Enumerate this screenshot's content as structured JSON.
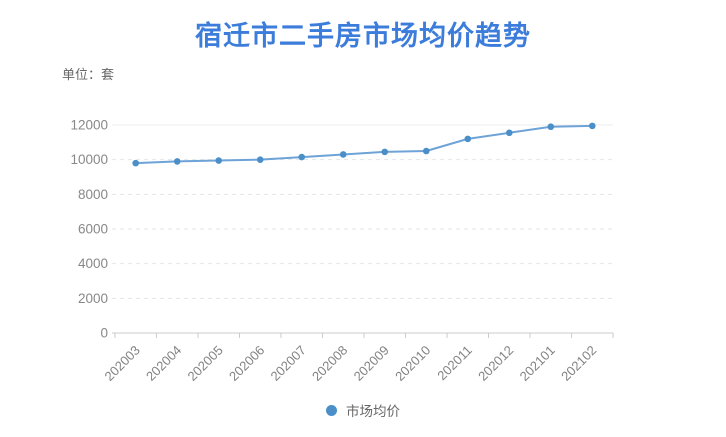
{
  "header": {
    "title": "宿迁市二手房市场均价趋势",
    "unit_label": "单位：套"
  },
  "legend": {
    "items": [
      {
        "label": "市场均价",
        "color": "#4b8fc9"
      }
    ]
  },
  "colors": {
    "title": "#3c7cdb",
    "unit_label": "#666666",
    "axis_label": "#888888",
    "x_axis_label": "#828282",
    "grid_dashed": "#e3e6ea",
    "grid_top_solid": "#ececec",
    "axis_line": "#cbcbcb",
    "line": "#6ea3d8",
    "point": "#4b8fc9",
    "legend_text": "#676767"
  },
  "chart_data": {
    "type": "line",
    "title": "宿迁市二手房市场均价趋势",
    "unit": "单位：套",
    "categories": [
      "202003",
      "202004",
      "202005",
      "202006",
      "202007",
      "202008",
      "202009",
      "202010",
      "202011",
      "202012",
      "202101",
      "202102"
    ],
    "series": [
      {
        "name": "市场均价",
        "values": [
          9800,
          9900,
          9950,
          10000,
          10150,
          10300,
          10450,
          10500,
          11200,
          11550,
          11900,
          11950
        ]
      }
    ],
    "ylim": [
      0,
      12000
    ],
    "y_step": 2000,
    "grid": "horizontal-dashed",
    "legend_position": "bottom-center",
    "x_label_rotation": -45
  }
}
